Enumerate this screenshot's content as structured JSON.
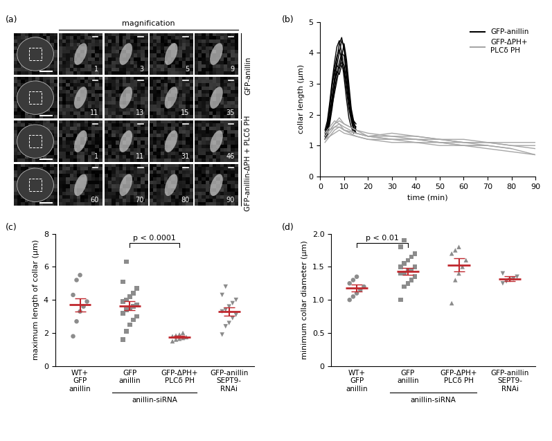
{
  "chart_data": [
    {
      "type": "image_grid",
      "title": "(a)",
      "header": "magnification",
      "rows": [
        {
          "times": [
            1,
            3,
            5,
            9
          ]
        },
        {
          "times": [
            11,
            13,
            15,
            35
          ]
        },
        {
          "times": [
            1,
            11,
            31,
            46
          ]
        },
        {
          "times": [
            60,
            70,
            80,
            90
          ]
        }
      ],
      "row_groups": [
        {
          "label": "GFP-anillin",
          "rows": [
            0,
            1
          ]
        },
        {
          "label": "GFP-anillin-ΔPH + PLCδ PH",
          "rows": [
            2,
            3
          ]
        }
      ]
    },
    {
      "type": "line",
      "title": "(b)",
      "x_label": "time (min)",
      "y_label": "collar length (µm)",
      "xlim": [
        0,
        90
      ],
      "xticks": [
        0,
        10,
        20,
        30,
        40,
        50,
        60,
        70,
        80,
        90
      ],
      "ylim": [
        0,
        5
      ],
      "yticks": [
        0,
        1,
        2,
        3,
        4,
        5
      ],
      "legend": "upper right",
      "series": [
        {
          "name": "GFP-anillin",
          "color": "#000000",
          "x": [
            2,
            3,
            4,
            5,
            6,
            7,
            8,
            9,
            10,
            11,
            12,
            13,
            14,
            15
          ],
          "traces": [
            [
              1.3,
              1.5,
              2.0,
              2.6,
              3.2,
              3.8,
              4.3,
              4.5,
              4.1,
              3.4,
              2.6,
              2.0,
              1.6,
              1.4
            ],
            [
              1.2,
              1.4,
              1.8,
              2.4,
              3.0,
              3.6,
              4.0,
              4.4,
              4.2,
              3.6,
              2.8,
              2.1,
              1.7,
              1.5
            ],
            [
              1.3,
              1.6,
              2.2,
              2.9,
              3.5,
              3.9,
              4.1,
              3.8,
              3.2,
              2.5,
              1.9,
              1.6,
              1.4,
              null
            ],
            [
              1.4,
              1.7,
              2.3,
              3.0,
              3.4,
              3.6,
              3.5,
              3.9,
              4.3,
              3.8,
              3.0,
              2.2,
              1.8,
              1.5
            ],
            [
              1.2,
              1.3,
              1.7,
              2.2,
              2.8,
              3.3,
              3.7,
              4.0,
              3.9,
              3.3,
              2.6,
              2.0,
              1.7,
              1.6
            ],
            [
              1.3,
              1.5,
              1.9,
              2.5,
              3.1,
              3.4,
              3.3,
              3.6,
              3.4,
              2.9,
              2.3,
              1.9,
              1.5,
              null
            ],
            [
              1.5,
              1.8,
              2.4,
              3.1,
              3.7,
              4.2,
              4.4,
              4.0,
              3.5,
              2.8,
              2.2,
              1.8,
              1.5,
              1.4
            ],
            [
              1.2,
              1.4,
              1.8,
              2.3,
              2.7,
              3.1,
              3.5,
              3.7,
              3.6,
              3.1,
              2.5,
              2.0,
              1.8,
              1.7
            ]
          ]
        },
        {
          "name": "GFP-ΔPH+\nPLCδ PH",
          "color": "#a6a6a6",
          "x": [
            2,
            4,
            6,
            8,
            10,
            15,
            20,
            30,
            40,
            50,
            60,
            70,
            80,
            90
          ],
          "traces": [
            [
              1.3,
              1.5,
              1.7,
              1.8,
              1.7,
              1.5,
              1.3,
              1.2,
              1.1,
              1.1,
              1.0,
              1.0,
              0.9,
              0.7
            ],
            [
              1.2,
              1.4,
              1.6,
              1.6,
              1.5,
              1.3,
              1.2,
              1.2,
              1.2,
              1.1,
              1.1,
              1.1,
              1.0,
              1.0
            ],
            [
              1.4,
              1.6,
              1.8,
              1.7,
              1.5,
              1.4,
              1.3,
              1.4,
              1.3,
              1.2,
              1.1,
              1.0,
              null,
              null
            ],
            [
              1.1,
              1.3,
              1.4,
              1.5,
              1.4,
              1.3,
              1.2,
              1.1,
              1.1,
              1.0,
              1.0,
              0.9,
              0.8,
              0.7
            ],
            [
              1.3,
              1.5,
              1.6,
              1.7,
              1.6,
              1.4,
              1.3,
              1.2,
              1.2,
              1.2,
              1.2,
              1.1,
              1.1,
              1.1
            ],
            [
              1.2,
              1.3,
              1.5,
              1.6,
              1.5,
              1.4,
              1.3,
              1.3,
              1.2,
              1.1,
              1.0,
              1.0,
              0.9,
              null
            ],
            [
              1.4,
              1.5,
              1.7,
              1.9,
              1.7,
              1.5,
              1.4,
              1.3,
              1.3,
              1.2,
              1.1,
              1.1,
              1.0,
              0.9
            ]
          ]
        }
      ]
    },
    {
      "type": "dot",
      "title": "(c)",
      "y_label": "maximum length of collar (µm)",
      "ylim": [
        0,
        8
      ],
      "yticks": [
        0,
        2,
        4,
        6,
        8
      ],
      "color": "#8c8c8c",
      "categories": [
        "WT+\nGFP\nanillin",
        "GFP\nanillin",
        "GFP-ΔPH+\nPLCδ PH",
        "GFP-anillin\nSEPT9-\nRNAi"
      ],
      "group": {
        "label": "anillin-siRNA",
        "categories": [
          1,
          2
        ]
      },
      "annotation": {
        "text": "p < 0.0001",
        "between": [
          1,
          2
        ]
      },
      "groups": [
        {
          "marker": "circle",
          "values": [
            1.8,
            2.7,
            3.3,
            3.6,
            3.9,
            4.3,
            5.2,
            5.5
          ],
          "mean": 3.7,
          "sem": 0.4
        },
        {
          "marker": "square",
          "values": [
            1.6,
            2.1,
            2.5,
            2.8,
            3.0,
            3.2,
            3.4,
            3.5,
            3.6,
            3.7,
            3.9,
            4.0,
            4.2,
            4.4,
            4.7,
            5.1,
            6.3
          ],
          "mean": 3.65,
          "sem": 0.27
        },
        {
          "marker": "triangle_up",
          "values": [
            1.5,
            1.6,
            1.65,
            1.7,
            1.75,
            1.8,
            1.85,
            1.9,
            2.0
          ],
          "mean": 1.75,
          "sem": 0.06
        },
        {
          "marker": "triangle_down",
          "values": [
            1.9,
            2.4,
            2.6,
            2.9,
            3.1,
            3.3,
            3.4,
            3.6,
            3.8,
            4.0,
            4.3,
            4.8
          ],
          "mean": 3.3,
          "sem": 0.25
        }
      ]
    },
    {
      "type": "dot",
      "title": "(d)",
      "y_label": "minimum collar diameter (µm)",
      "ylim": [
        0,
        2
      ],
      "yticks": [
        0,
        0.5,
        {
          "value": 1,
          "label": "1.0"
        },
        1.5,
        {
          "value": 2,
          "label": "2.0"
        }
      ],
      "color": "#8c8c8c",
      "categories": [
        "WT+\nGFP\nanillin",
        "GFP\nanillin",
        "GFP-ΔPH+\nPLCδ PH",
        "GFP-anillin\nSEPT9-\nRNAi"
      ],
      "group": {
        "label": "anillin-siRNA",
        "categories": [
          1,
          2
        ]
      },
      "annotation": {
        "text": "p < 0.01",
        "between": [
          0,
          1
        ]
      },
      "groups": [
        {
          "marker": "circle",
          "values": [
            1.0,
            1.05,
            1.1,
            1.15,
            1.2,
            1.25,
            1.3,
            1.35
          ],
          "mean": 1.18,
          "sem": 0.05
        },
        {
          "marker": "square",
          "values": [
            1.0,
            1.2,
            1.25,
            1.3,
            1.35,
            1.4,
            1.4,
            1.45,
            1.45,
            1.5,
            1.5,
            1.55,
            1.6,
            1.65,
            1.7,
            1.8,
            1.9
          ],
          "mean": 1.43,
          "sem": 0.05
        },
        {
          "marker": "triangle_up",
          "values": [
            0.95,
            1.3,
            1.4,
            1.5,
            1.6,
            1.7,
            1.75,
            1.8
          ],
          "mean": 1.53,
          "sem": 0.1
        },
        {
          "marker": "triangle_down",
          "values": [
            1.25,
            1.28,
            1.3,
            1.32,
            1.35,
            1.4
          ],
          "mean": 1.32,
          "sem": 0.04
        }
      ]
    }
  ]
}
